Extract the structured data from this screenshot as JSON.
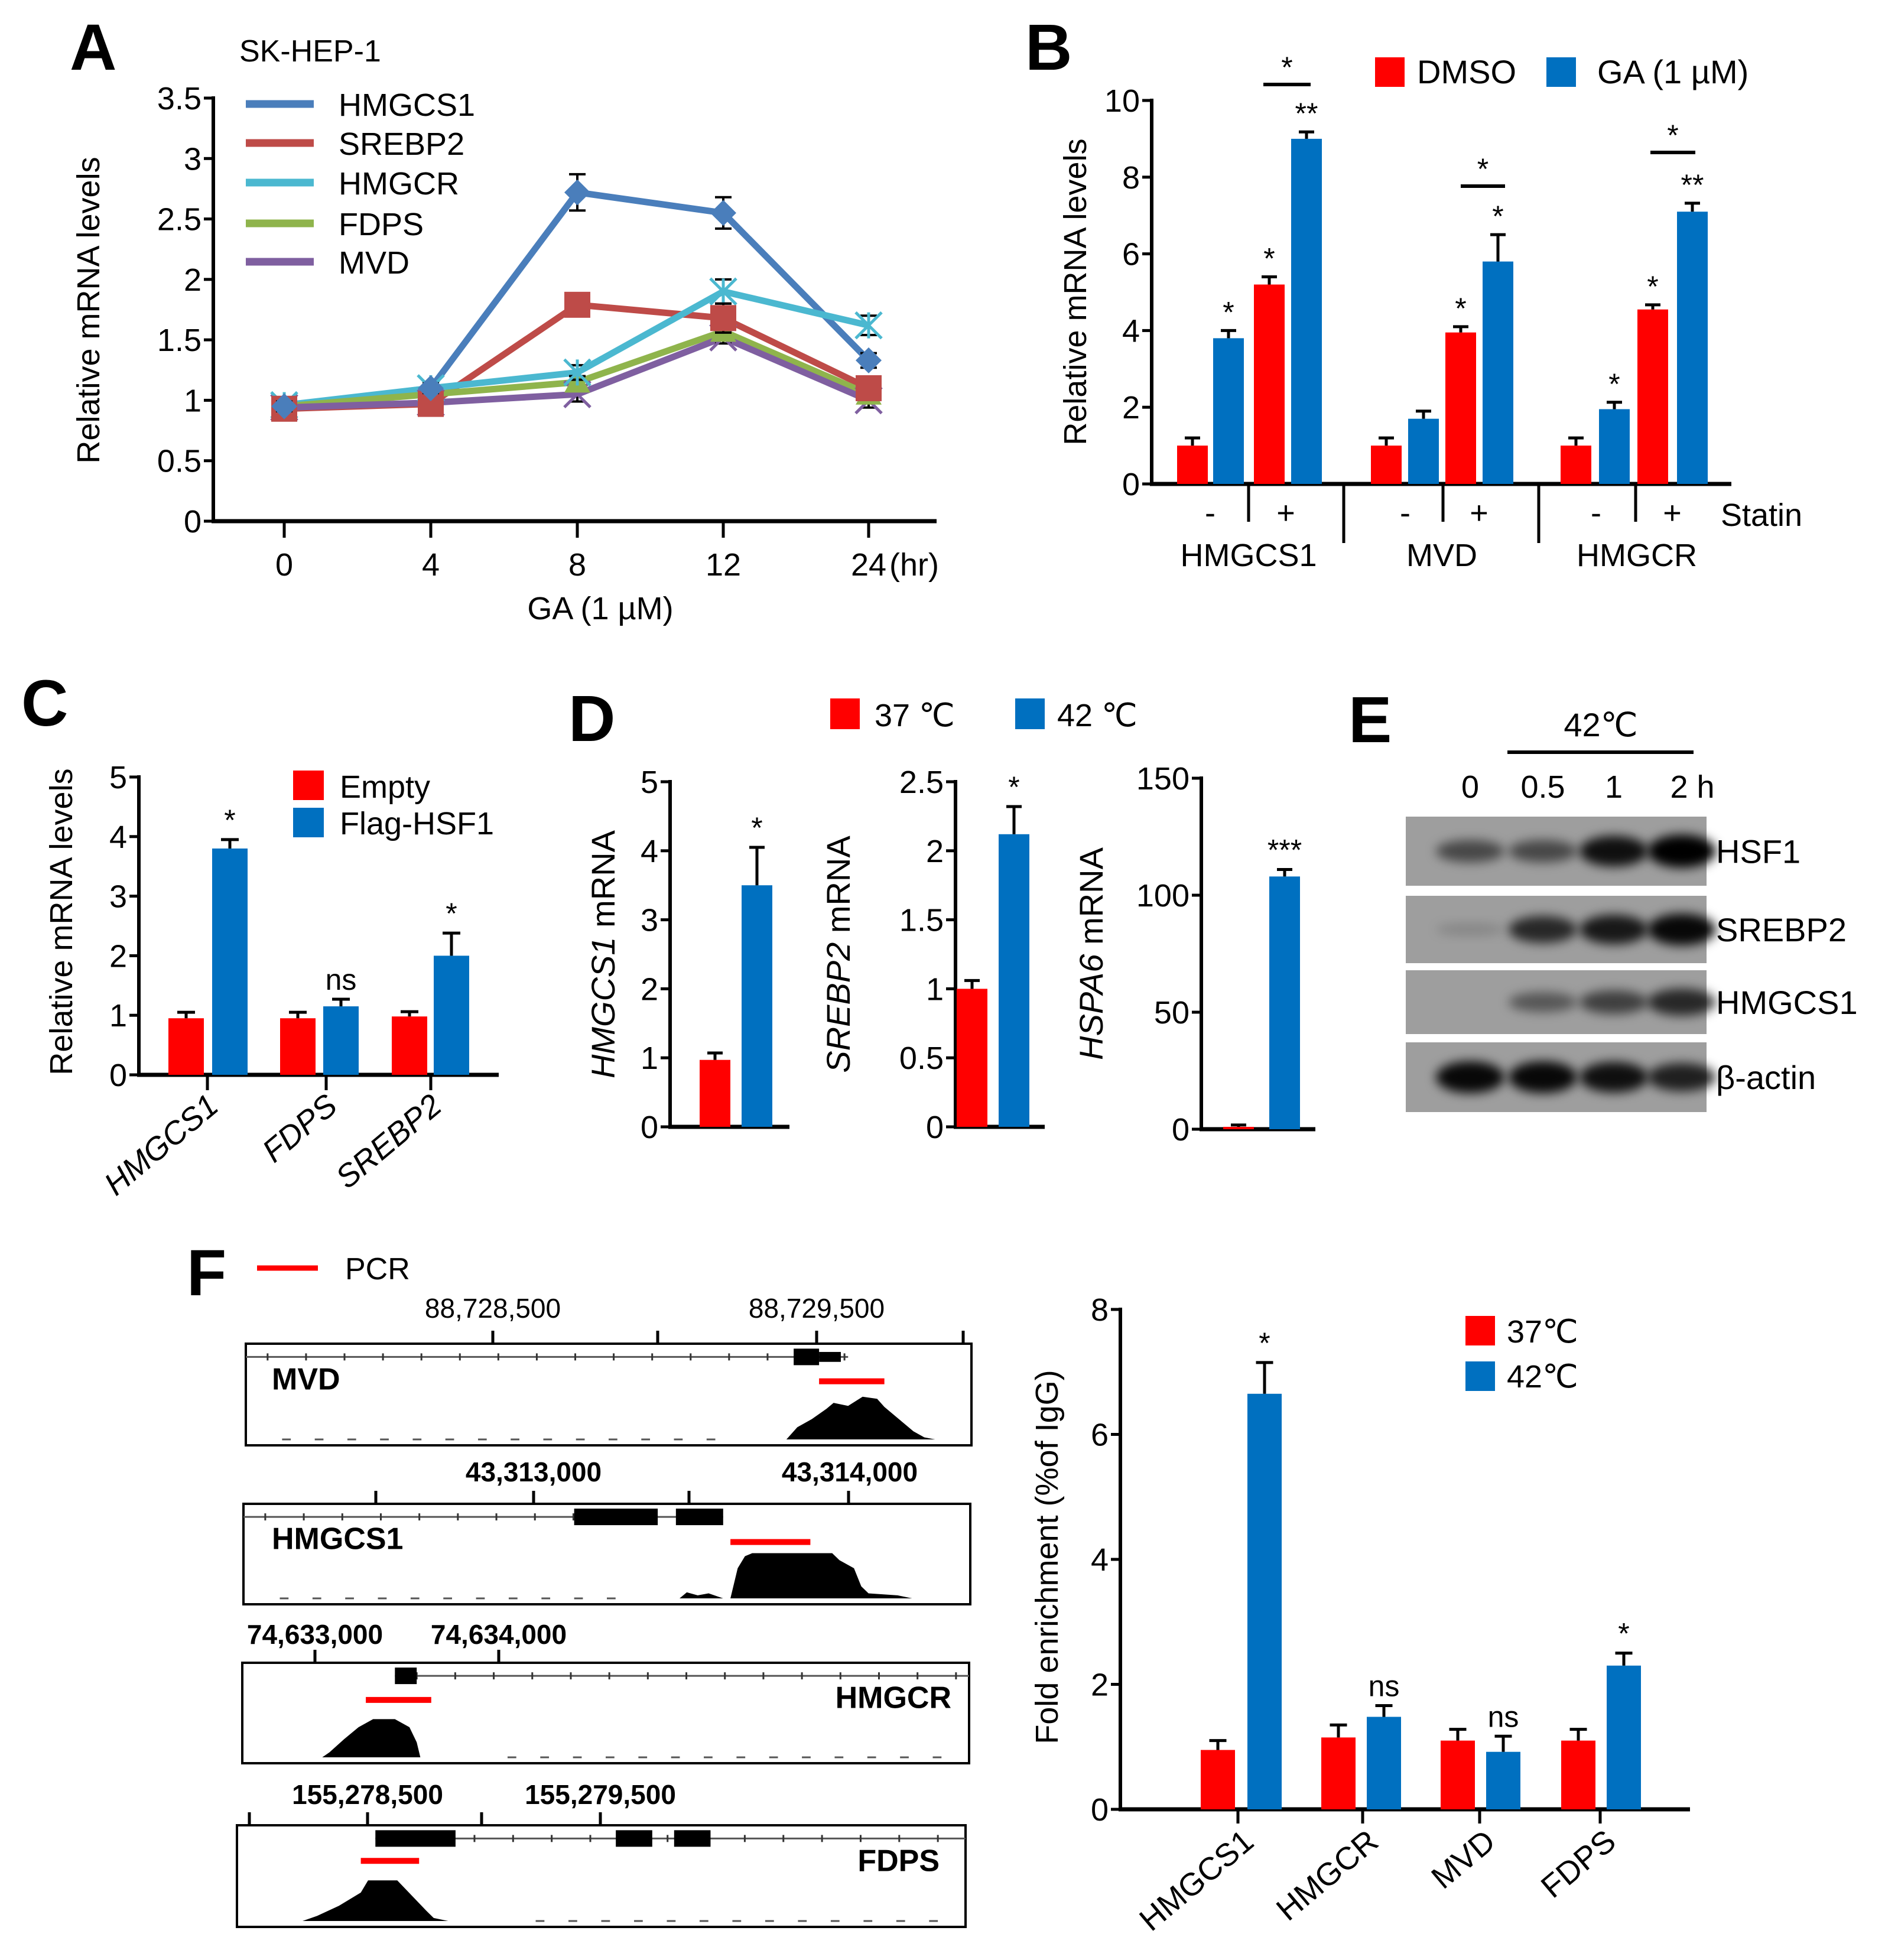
{
  "panels": {
    "A": "A",
    "B": "B",
    "C": "C",
    "D": "D",
    "E": "E",
    "F": "F"
  },
  "chart_data": [
    {
      "type": "line",
      "title": "SK-HEP-1",
      "xlabel": "GA (1 µM)",
      "ylabel": "Relative mRNA  levels",
      "x": [
        "0",
        "4",
        "8",
        "12",
        "24"
      ],
      "x_unit": "(hr)",
      "ylim": [
        0,
        3.5
      ],
      "y_ticks": [
        "0",
        "0.5",
        "1",
        "1.5",
        "2",
        "2.5",
        "3",
        "3.5"
      ],
      "legend": "top-left",
      "series": [
        {
          "name": "HMGCS1",
          "color": "#4a7ebb",
          "marker": "diamond",
          "values": [
            0.95,
            1.1,
            2.72,
            2.55,
            1.33
          ],
          "errors": [
            0.04,
            0.04,
            0.15,
            0.13,
            0.06
          ]
        },
        {
          "name": "SREBP2",
          "color": "#be4b48",
          "marker": "square",
          "values": [
            0.93,
            0.97,
            1.79,
            1.68,
            1.1
          ],
          "errors": [
            0.04,
            0.04,
            0.05,
            0.12,
            0.05
          ]
        },
        {
          "name": "HMGCR",
          "color": "#4bb8d0",
          "marker": "asterisk",
          "values": [
            0.96,
            1.1,
            1.23,
            1.9,
            1.62
          ],
          "errors": [
            0.04,
            0.05,
            0.06,
            0.1,
            0.08
          ]
        },
        {
          "name": "FDPS",
          "color": "#8fb44c",
          "marker": "triangle",
          "values": [
            0.95,
            1.05,
            1.15,
            1.57,
            1.05
          ],
          "errors": [
            0.04,
            0.04,
            0.05,
            0.05,
            0.05
          ]
        },
        {
          "name": "MVD",
          "color": "#7f5fa0",
          "marker": "x",
          "values": [
            0.94,
            0.98,
            1.05,
            1.52,
            1.0
          ],
          "errors": [
            0.04,
            0.04,
            0.06,
            0.05,
            0.06
          ]
        }
      ]
    },
    {
      "type": "bar",
      "ylabel": "Relative mRNA  levels",
      "ylim": [
        0,
        10
      ],
      "y_ticks": [
        "0",
        "2",
        "4",
        "6",
        "8",
        "10"
      ],
      "groups": [
        "HMGCS1",
        "MVD",
        "HMGCR"
      ],
      "statin_label": "Statin",
      "statin_levels": [
        "-",
        "+"
      ],
      "legend": "top-right",
      "series": [
        {
          "name": "DMSO",
          "color": "#ff0000",
          "values": [
            1.0,
            5.2,
            1.0,
            3.95,
            1.0,
            4.55
          ],
          "errors": [
            0.2,
            0.2,
            0.2,
            0.15,
            0.2,
            0.12
          ],
          "sig": [
            "",
            "*",
            "",
            "*",
            "",
            "*"
          ]
        },
        {
          "name": "GA (1 µM)",
          "color": "#0070c0",
          "values": [
            3.8,
            9.0,
            1.7,
            5.8,
            1.95,
            7.1
          ],
          "errors": [
            0.2,
            0.18,
            0.2,
            0.7,
            0.18,
            0.22
          ],
          "sig": [
            "*",
            "**",
            "",
            "*",
            "*",
            "**"
          ]
        }
      ],
      "brackets": [
        "*",
        "*",
        "*"
      ]
    },
    {
      "type": "bar",
      "ylabel": "Relative mRNA  levels",
      "ylim": [
        0,
        5
      ],
      "y_ticks": [
        "0",
        "1",
        "2",
        "3",
        "4",
        "5"
      ],
      "categories": [
        "HMGCS1",
        "FDPS",
        "SREBP2"
      ],
      "legend": "top-right",
      "series": [
        {
          "name": "Empty",
          "color": "#ff0000",
          "values": [
            0.95,
            0.95,
            0.98
          ],
          "errors": [
            0.1,
            0.1,
            0.08
          ]
        },
        {
          "name": "Flag-HSF1",
          "color": "#0070c0",
          "values": [
            3.8,
            1.15,
            2.0
          ],
          "errors": [
            0.15,
            0.12,
            0.38
          ]
        }
      ],
      "sig": [
        "*",
        "ns",
        "*"
      ]
    },
    {
      "type": "bar",
      "ylabel_gene": "HMGCS1",
      "ylabel_suffix": " mRNA",
      "ylim": [
        0,
        5
      ],
      "y_ticks": [
        "0",
        "1",
        "2",
        "3",
        "4",
        "5"
      ],
      "series": [
        {
          "name": "37 ℃",
          "color": "#ff0000",
          "value": 0.97,
          "error": 0.1
        },
        {
          "name": "42 ℃",
          "color": "#0070c0",
          "value": 3.5,
          "error": 0.55
        }
      ],
      "sig": "*"
    },
    {
      "type": "bar",
      "ylabel_gene": "SREBP2",
      "ylabel_suffix": " mRNA",
      "ylim": [
        0,
        2.5
      ],
      "y_ticks": [
        "0",
        "0.5",
        "1",
        "1.5",
        "2",
        "2.5"
      ],
      "series": [
        {
          "name": "37 ℃",
          "color": "#ff0000",
          "value": 1.0,
          "error": 0.06
        },
        {
          "name": "42 ℃",
          "color": "#0070c0",
          "value": 2.12,
          "error": 0.2
        }
      ],
      "sig": "*"
    },
    {
      "type": "bar",
      "ylabel_gene": "HSPA6",
      "ylabel_suffix": " mRNA",
      "ylim": [
        0,
        150
      ],
      "y_ticks": [
        "0",
        "50",
        "100",
        "150"
      ],
      "series": [
        {
          "name": "37 ℃",
          "color": "#ff0000",
          "value": 1.0,
          "error": 0.8
        },
        {
          "name": "42 ℃",
          "color": "#0070c0",
          "value": 108,
          "error": 3
        }
      ],
      "sig": "***"
    },
    {
      "type": "bar",
      "ylabel": "Fold enrichment (%of IgG)",
      "ylim": [
        0,
        8
      ],
      "y_ticks": [
        "0",
        "2",
        "4",
        "6",
        "8"
      ],
      "categories": [
        "HMGCS1",
        "HMGCR",
        "MVD",
        "FDPS"
      ],
      "legend": "top-right",
      "series": [
        {
          "name": "37℃",
          "color": "#ff0000",
          "values": [
            0.95,
            1.15,
            1.1,
            1.1
          ],
          "errors": [
            0.15,
            0.2,
            0.18,
            0.18
          ]
        },
        {
          "name": "42℃",
          "color": "#0070c0",
          "values": [
            6.65,
            1.48,
            0.92,
            2.3
          ],
          "errors": [
            0.5,
            0.18,
            0.25,
            0.2
          ]
        }
      ],
      "sig": [
        "*",
        "ns",
        "ns",
        "*"
      ]
    }
  ],
  "western_blot": {
    "condition": "42℃",
    "lanes": [
      "0",
      "0.5",
      "1",
      "2 h"
    ],
    "rows": [
      {
        "name": "HSF1",
        "intensity": [
          0.55,
          0.55,
          0.9,
          1.0
        ]
      },
      {
        "name": "SREBP2",
        "intensity": [
          0.15,
          0.75,
          0.85,
          0.95
        ]
      },
      {
        "name": "HMGCS1",
        "intensity": [
          0.0,
          0.45,
          0.6,
          0.75
        ]
      },
      {
        "name": "β-actin",
        "intensity": [
          0.95,
          0.95,
          0.9,
          0.8
        ]
      }
    ]
  },
  "genome_tracks": {
    "legend": "PCR",
    "tracks": [
      {
        "gene": "MVD",
        "coords": [
          "88,728,500",
          "88,729,500"
        ]
      },
      {
        "gene": "HMGCS1",
        "coords": [
          "43,313,000",
          "43,314,000"
        ]
      },
      {
        "gene": "HMGCR",
        "coords": [
          "74,633,000",
          "74,634,000"
        ]
      },
      {
        "gene": "FDPS",
        "coords": [
          "155,278,500",
          "155,279,500"
        ]
      }
    ]
  }
}
